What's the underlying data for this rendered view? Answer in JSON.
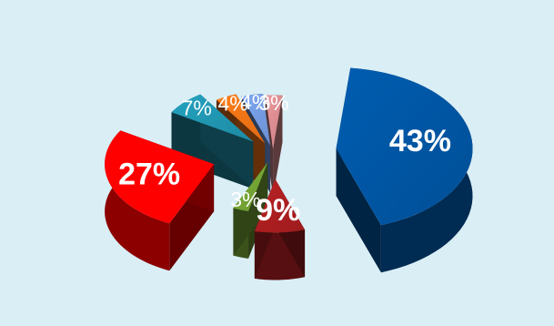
{
  "chart_data": {
    "type": "pie",
    "style": "3d-exploded",
    "title": "",
    "legend": "none",
    "slices": [
      {
        "value": 43,
        "label": "43%",
        "color": "#004f96"
      },
      {
        "value": 9,
        "label": "9%",
        "color": "#9e1c1e"
      },
      {
        "value": 3,
        "label": "3%",
        "color": "#6b9730"
      },
      {
        "value": 27,
        "label": "27%",
        "color": "#ff0000"
      },
      {
        "value": 7,
        "label": "7%",
        "color": "#1e8aa3"
      },
      {
        "value": 4,
        "label": "4%",
        "color": "#e06b14"
      },
      {
        "value": 4,
        "label": "4%",
        "color": "#6b8fd0"
      },
      {
        "value": 3,
        "label": "3%",
        "color": "#c98184"
      }
    ]
  }
}
